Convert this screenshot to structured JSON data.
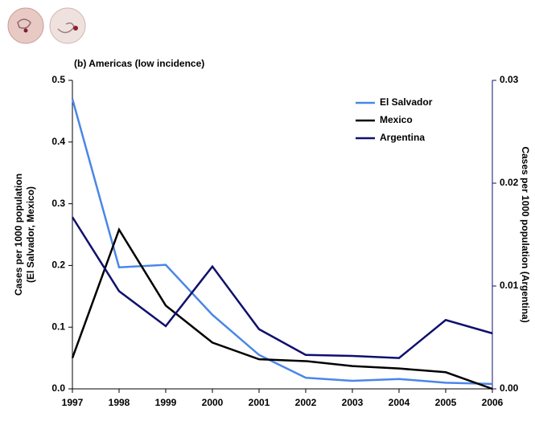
{
  "chart_data": {
    "type": "line",
    "subtitle": "(b) Americas (low incidence)",
    "y_label_lines": [
      "Cases per 1000 population",
      "(El Salvador, Mexico)"
    ],
    "y2_label": "Cases per 1000 population (Argentina)",
    "x": [
      1997,
      1998,
      1999,
      2000,
      2001,
      2002,
      2003,
      2004,
      2005,
      2006
    ],
    "xlim": [
      1997,
      2006
    ],
    "xticks": [
      1997,
      1998,
      1999,
      2000,
      2001,
      2002,
      2003,
      2004,
      2005,
      2006
    ],
    "ylim": [
      0,
      0.5
    ],
    "yticks": [
      {
        "value": 0,
        "label": "0.0"
      },
      0.1,
      0.2,
      0.3,
      0.4,
      0.5
    ],
    "y2lim": [
      0,
      0.03
    ],
    "y2ticks": [
      {
        "value": 0,
        "label": "0.00"
      },
      0.01,
      0.02,
      0.03
    ],
    "grid": false,
    "legend": "upper right",
    "series": [
      {
        "name": "El Salvador",
        "color": "#4a86e8",
        "values": [
          0.47,
          0.197,
          0.201,
          0.12,
          0.055,
          0.018,
          0.013,
          0.016,
          0.01,
          0.008
        ]
      },
      {
        "name": "Mexico",
        "color": "#000000",
        "values": [
          0.05,
          0.258,
          0.135,
          0.075,
          0.048,
          0.045,
          0.037,
          0.033,
          0.027,
          0.0
        ]
      },
      {
        "name": "Argentina",
        "color": "#10106e",
        "axis": "y2",
        "values": [
          0.0167,
          0.0095,
          0.0061,
          0.0119,
          0.0058,
          0.0033,
          0.0032,
          0.003,
          0.0067,
          0.0054
        ]
      }
    ]
  }
}
